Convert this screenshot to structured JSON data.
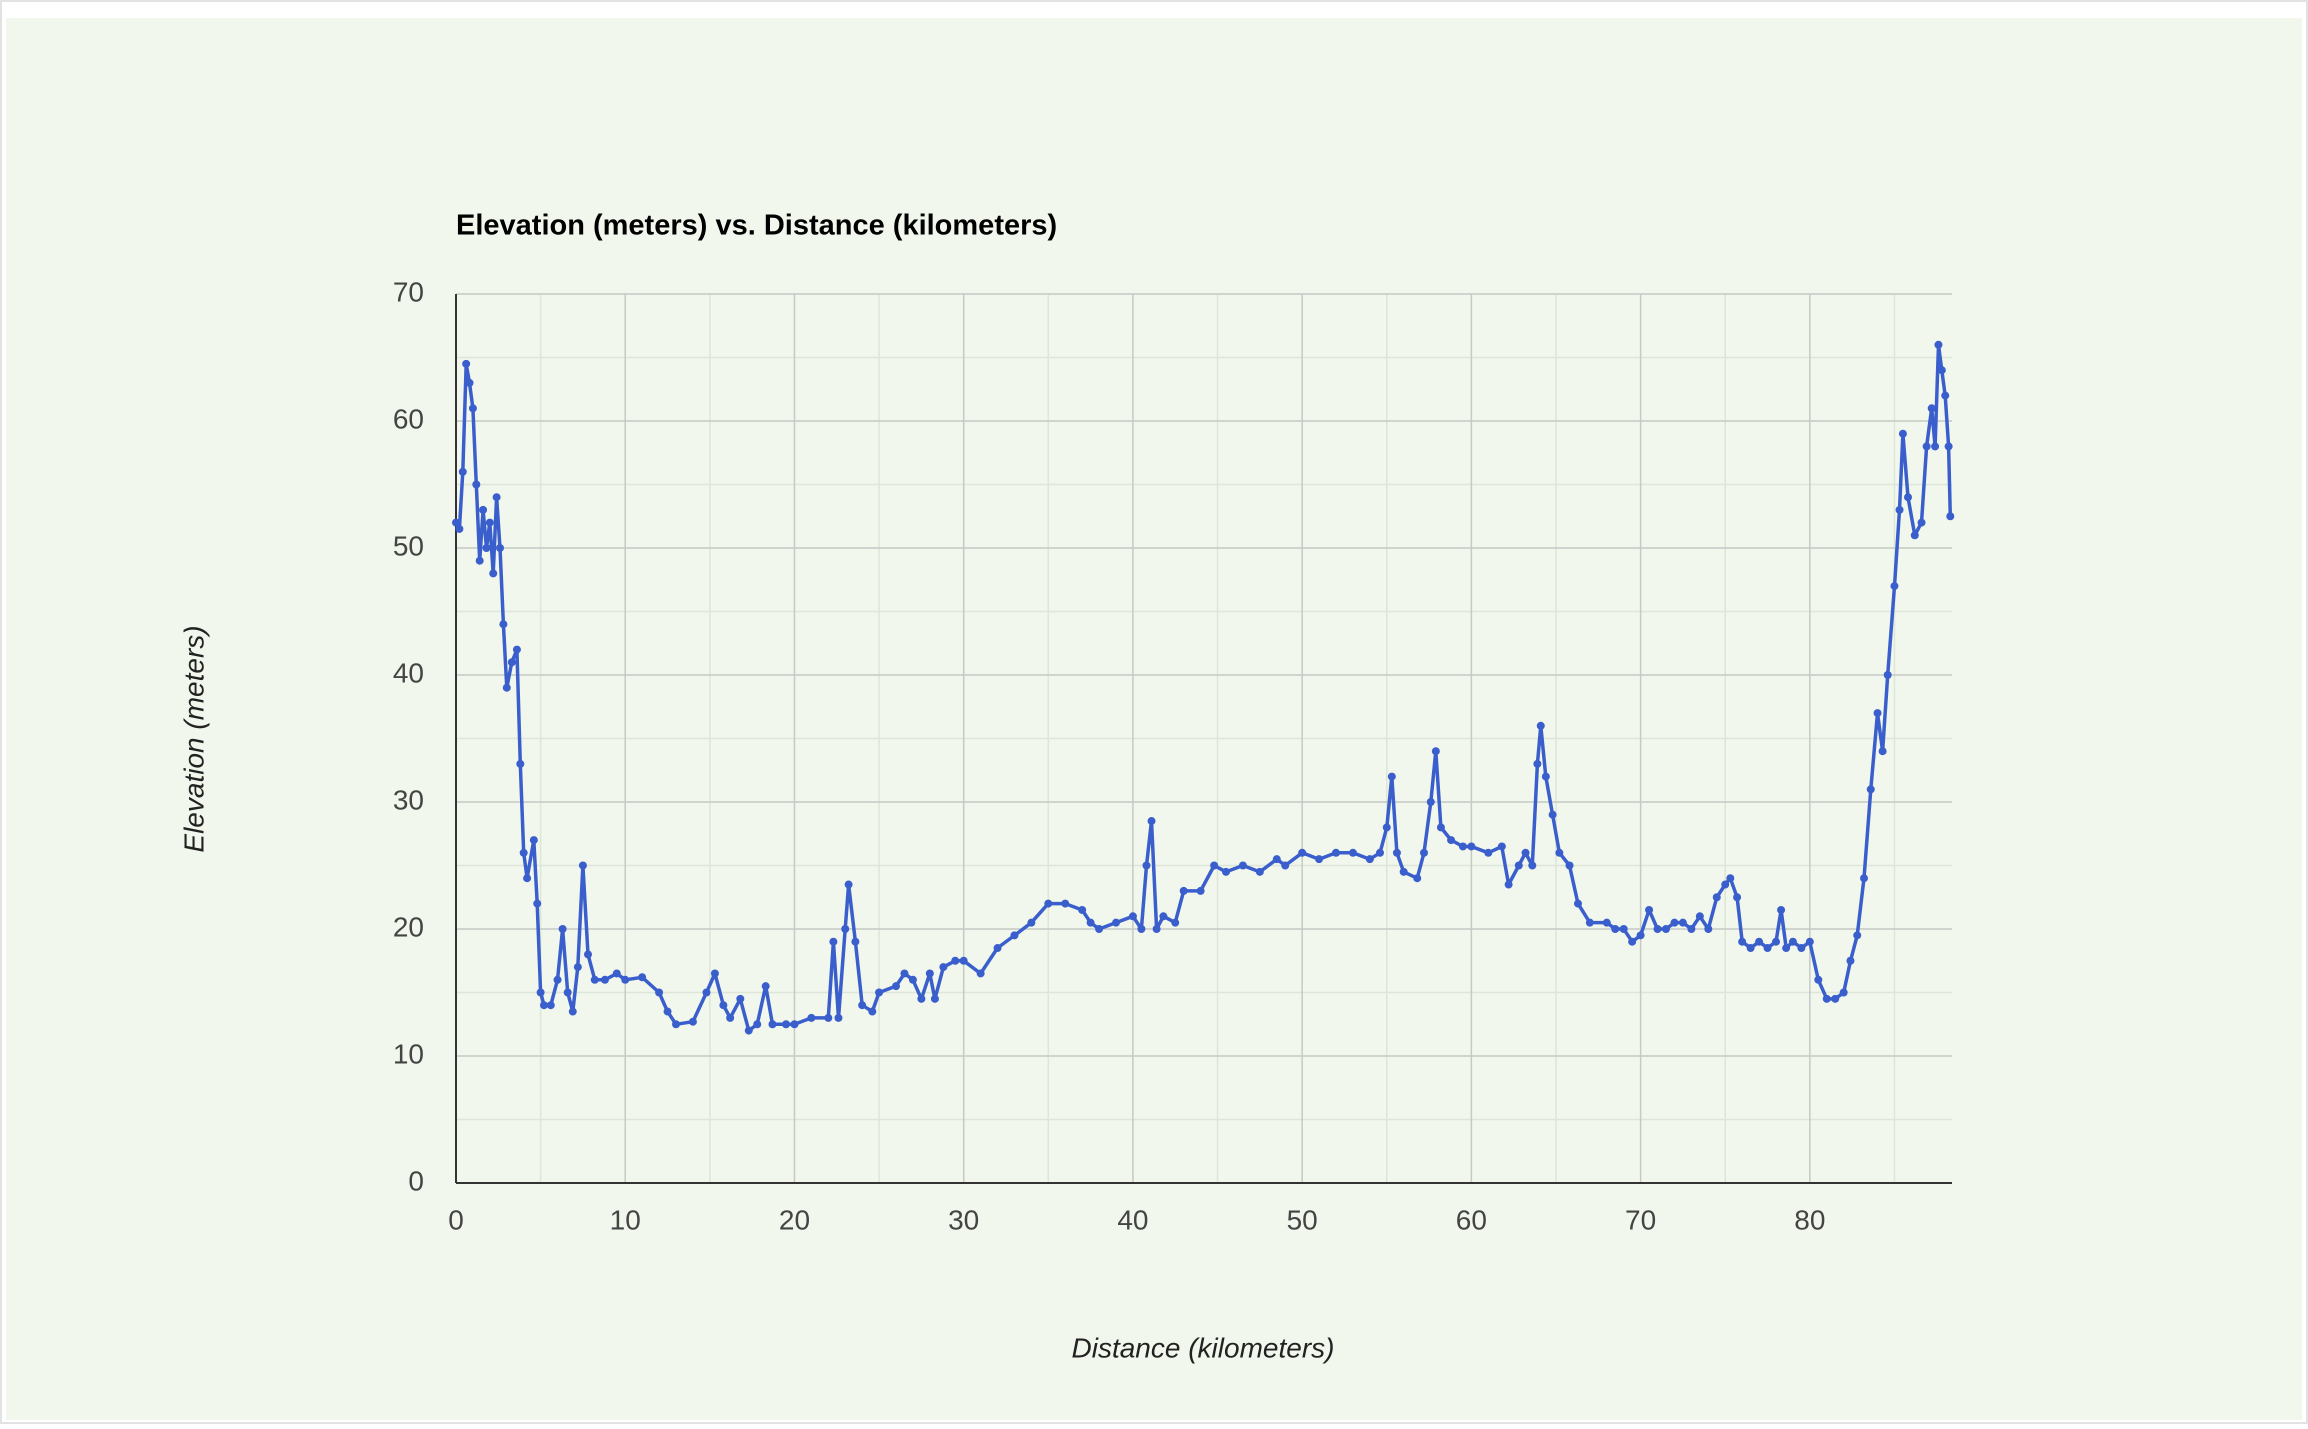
{
  "chart_data": {
    "type": "line",
    "title": "Elevation (meters) vs. Distance (kilometers)",
    "x_label": "Distance (kilometers)",
    "y_label": "Elevation (meters)",
    "xlim": [
      0,
      88.4
    ],
    "ylim": [
      0,
      70
    ],
    "xticks": [
      0,
      10,
      20,
      30,
      40,
      50,
      60,
      70,
      80
    ],
    "yticks": [
      0,
      10,
      20,
      30,
      40,
      50,
      60,
      70
    ],
    "minor_xticks": [
      5,
      15,
      25,
      35,
      45,
      55,
      65,
      75,
      85
    ],
    "minor_yticks": [
      5,
      15,
      25,
      35,
      45,
      55,
      65
    ],
    "grid": true,
    "x": [
      0,
      0.2,
      0.4,
      0.6,
      0.8,
      1.0,
      1.2,
      1.4,
      1.6,
      1.8,
      2.0,
      2.2,
      2.4,
      2.6,
      2.8,
      3.0,
      3.3,
      3.6,
      3.8,
      4.0,
      4.2,
      4.6,
      4.8,
      5.0,
      5.2,
      5.6,
      6.0,
      6.3,
      6.6,
      6.9,
      7.2,
      7.5,
      7.8,
      8.2,
      8.8,
      9.5,
      10,
      11,
      12,
      12.5,
      13,
      14,
      14.8,
      15.3,
      15.8,
      16.2,
      16.8,
      17.3,
      17.8,
      18.3,
      18.7,
      19.5,
      20,
      21,
      22,
      22.3,
      22.6,
      23,
      23.2,
      23.6,
      24,
      24.6,
      25,
      26,
      26.5,
      27,
      27.5,
      28,
      28.3,
      28.8,
      29.5,
      30,
      31,
      32,
      33,
      34,
      35,
      36,
      37,
      37.5,
      38,
      39,
      40,
      40.5,
      40.8,
      41.1,
      41.4,
      41.8,
      42.5,
      43,
      44,
      44.8,
      45.5,
      46.5,
      47.5,
      48.5,
      49,
      50,
      51,
      52,
      53,
      54,
      54.6,
      55,
      55.3,
      55.6,
      56,
      56.8,
      57.2,
      57.6,
      57.9,
      58.2,
      58.8,
      59.5,
      60,
      61,
      61.8,
      62.2,
      62.8,
      63.2,
      63.6,
      63.9,
      64.1,
      64.4,
      64.8,
      65.2,
      65.8,
      66.3,
      67,
      68,
      68.5,
      69,
      69.5,
      70,
      70.5,
      71,
      71.5,
      72,
      72.5,
      73,
      73.5,
      74,
      74.5,
      75,
      75.3,
      75.7,
      76,
      76.5,
      77,
      77.5,
      78,
      78.3,
      78.6,
      79,
      79.5,
      80,
      80.5,
      81,
      81.5,
      82,
      82.4,
      82.8,
      83.2,
      83.6,
      84,
      84.3,
      84.6,
      85,
      85.3,
      85.5,
      85.8,
      86.2,
      86.6,
      86.9,
      87.2,
      87.4,
      87.6,
      87.8,
      88.0,
      88.2,
      88.3
    ],
    "series": [
      {
        "name": "Elevation (meters)",
        "color": "#3a5fcd",
        "values": [
          52,
          51.5,
          56,
          64.5,
          63,
          61,
          55,
          49,
          53,
          50,
          52,
          48,
          54,
          50,
          44,
          39,
          41,
          42,
          33,
          26,
          24,
          27,
          22,
          15,
          14,
          14,
          16,
          20,
          15,
          13.5,
          17,
          25,
          18,
          16,
          16,
          16.5,
          16,
          16.2,
          15,
          13.5,
          12.5,
          12.7,
          15,
          16.5,
          14,
          13,
          14.5,
          12,
          12.5,
          15.5,
          12.5,
          12.5,
          12.5,
          13,
          13,
          19,
          13,
          20,
          23.5,
          19,
          14,
          13.5,
          15,
          15.5,
          16.5,
          16,
          14.5,
          16.5,
          14.5,
          17,
          17.5,
          17.5,
          16.5,
          18.5,
          19.5,
          20.5,
          22,
          22,
          21.5,
          20.5,
          20,
          20.5,
          21,
          20,
          25,
          28.5,
          20,
          21,
          20.5,
          23,
          23,
          25,
          24.5,
          25,
          24.5,
          25.5,
          25,
          26,
          25.5,
          26,
          26,
          25.5,
          26,
          28,
          32,
          26,
          24.5,
          24,
          26,
          30,
          34,
          28,
          27,
          26.5,
          26.5,
          26,
          26.5,
          23.5,
          25,
          26,
          25,
          33,
          36,
          32,
          29,
          26,
          25,
          22,
          20.5,
          20.5,
          20,
          20,
          19,
          19.5,
          21.5,
          20,
          20,
          20.5,
          20.5,
          20,
          21,
          20,
          22.5,
          23.5,
          24,
          22.5,
          19,
          18.5,
          19,
          18.5,
          19,
          21.5,
          18.5,
          19,
          18.5,
          19,
          16,
          14.5,
          14.5,
          15,
          17.5,
          19.5,
          24,
          31,
          37,
          34,
          40,
          47,
          53,
          59,
          54,
          51,
          52,
          58,
          61,
          58,
          66,
          64,
          62,
          58,
          52.5
        ]
      }
    ]
  }
}
